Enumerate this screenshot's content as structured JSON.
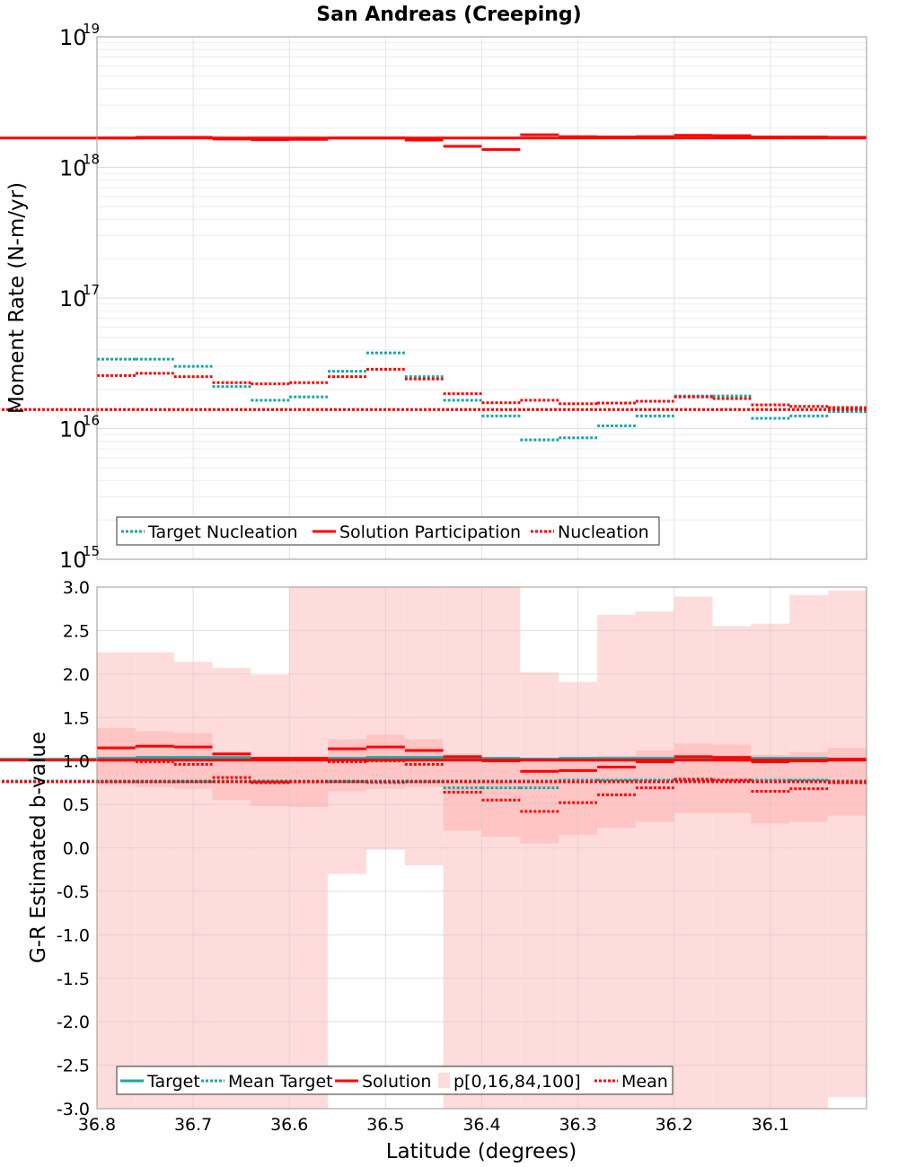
{
  "title": "San Andreas (Creeping)",
  "colors": {
    "target": "#1aa6a6",
    "solution": "#ff0000",
    "band_outer": "#ffdcdc",
    "band_inner": "#ffc4c4",
    "grid": "#e6e6e6",
    "frame": "#999999"
  },
  "chart_data": [
    {
      "type": "line",
      "id": "moment",
      "ylabel": "Moment Rate (N-m/yr)",
      "yscale": "log",
      "ylim": [
        1000000000000000.0,
        1e+19
      ],
      "y_ticks": [
        {
          "base": "10",
          "exp": "15"
        },
        {
          "base": "10",
          "exp": "16"
        },
        {
          "base": "10",
          "exp": "17"
        },
        {
          "base": "10",
          "exp": "18"
        },
        {
          "base": "10",
          "exp": "19"
        }
      ],
      "xlim": [
        36.8,
        36.0
      ],
      "x_edges": [
        36.8,
        36.76,
        36.72,
        36.68,
        36.64,
        36.6,
        36.56,
        36.52,
        36.48,
        36.44,
        36.4,
        36.36,
        36.32,
        36.28,
        36.24,
        36.2,
        36.16,
        36.12,
        36.08,
        36.04,
        36.0
      ],
      "series": [
        {
          "name": "Target Nucleation",
          "style": "dotted",
          "color": "#1aa6a6",
          "values": [
            3.4e+16,
            3.4e+16,
            3e+16,
            2.1e+16,
            1.65e+16,
            1.75e+16,
            2.75e+16,
            3.8e+16,
            2.5e+16,
            1.65e+16,
            1.25e+16,
            8200000000000000.0,
            8500000000000000.0,
            1.05e+16,
            1.25e+16,
            1.78e+16,
            1.78e+16,
            1.2e+16,
            1.25e+16,
            1.35e+16,
            1.4e+16
          ]
        },
        {
          "name": "Solution Participation",
          "style": "solid",
          "color": "#ff0000",
          "values": [
            1.68e+18,
            1.7e+18,
            1.7e+18,
            1.65e+18,
            1.63e+18,
            1.64e+18,
            1.68e+18,
            1.68e+18,
            1.62e+18,
            1.45e+18,
            1.37e+18,
            1.78e+18,
            1.72e+18,
            1.71e+18,
            1.72e+18,
            1.76e+18,
            1.75e+18,
            1.71e+18,
            1.71e+18,
            1.7e+18,
            1.68e+18
          ]
        },
        {
          "name": "Nucleation",
          "style": "dotted",
          "color": "#ff0000",
          "values": [
            2.55e+16,
            2.65e+16,
            2.5e+16,
            2.25e+16,
            2.2e+16,
            2.25e+16,
            2.5e+16,
            2.85e+16,
            2.4e+16,
            1.85e+16,
            1.58e+16,
            1.65e+16,
            1.55e+16,
            1.57e+16,
            1.62e+16,
            1.75e+16,
            1.7e+16,
            1.52e+16,
            1.48e+16,
            1.45e+16,
            1.4e+16
          ]
        }
      ],
      "legend": [
        "Target Nucleation",
        "Solution Participation",
        "Nucleation"
      ]
    },
    {
      "type": "line",
      "id": "bvalue",
      "xlabel": "Latitude (degrees)",
      "ylabel": "G-R Estimated b-value",
      "ylim": [
        -3.0,
        3.0
      ],
      "y_ticks": [
        "-3.0",
        "-2.5",
        "-2.0",
        "-1.5",
        "-1.0",
        "-0.5",
        "0.0",
        "0.5",
        "1.0",
        "1.5",
        "2.0",
        "2.5",
        "3.0"
      ],
      "xlim": [
        36.8,
        36.0
      ],
      "x_ticks": [
        "36.8",
        "36.7",
        "36.6",
        "36.5",
        "36.4",
        "36.3",
        "36.2",
        "36.1"
      ],
      "x_edges": [
        36.8,
        36.76,
        36.72,
        36.68,
        36.64,
        36.6,
        36.56,
        36.52,
        36.48,
        36.44,
        36.4,
        36.36,
        36.32,
        36.28,
        36.24,
        36.2,
        36.16,
        36.12,
        36.08,
        36.04,
        36.0
      ],
      "bands": {
        "name": "p[0,16,84,100]",
        "p0": [
          -3.0,
          -3.0,
          -3.0,
          -3.0,
          -3.0,
          -3.0,
          -0.3,
          -0.02,
          -0.2,
          -3.0,
          -3.0,
          -3.0,
          -3.0,
          -3.0,
          -3.0,
          -3.0,
          -3.0,
          -3.0,
          -3.0,
          -2.87,
          -2.87
        ],
        "p16": [
          0.72,
          0.7,
          0.68,
          0.55,
          0.48,
          0.47,
          0.65,
          0.68,
          0.7,
          0.2,
          0.13,
          0.05,
          0.15,
          0.23,
          0.3,
          0.4,
          0.4,
          0.28,
          0.3,
          0.37,
          0.35
        ],
        "p84": [
          1.38,
          1.34,
          1.32,
          1.1,
          1.04,
          1.04,
          1.25,
          1.3,
          1.25,
          1.08,
          1.04,
          1.0,
          1.02,
          1.06,
          1.12,
          1.2,
          1.19,
          1.07,
          1.1,
          1.15,
          1.16
        ],
        "p100": [
          2.25,
          2.25,
          2.14,
          2.07,
          1.99,
          3.0,
          3.0,
          3.0,
          3.0,
          3.0,
          3.0,
          2.02,
          1.91,
          2.68,
          2.72,
          2.89,
          2.55,
          2.58,
          2.91,
          2.96,
          3.0
        ]
      },
      "series": [
        {
          "name": "Target",
          "style": "solid",
          "color": "#1aa6a6",
          "values": [
            1.03,
            1.04,
            1.04,
            1.04,
            1.03,
            1.03,
            1.03,
            1.04,
            1.04,
            1.04,
            1.03,
            1.02,
            1.03,
            1.03,
            1.03,
            1.04,
            1.04,
            1.03,
            1.03,
            1.02,
            1.02
          ]
        },
        {
          "name": "Mean Target",
          "style": "dotted",
          "color": "#1aa6a6",
          "values": [
            0.76,
            0.76,
            0.76,
            0.76,
            0.76,
            0.76,
            0.76,
            0.75,
            0.76,
            0.69,
            0.69,
            0.69,
            0.78,
            0.78,
            0.78,
            0.78,
            0.78,
            0.78,
            0.78,
            0.77,
            0.77
          ]
        },
        {
          "name": "Solution",
          "style": "solid",
          "color": "#ff0000",
          "values": [
            1.15,
            1.17,
            1.16,
            1.08,
            1.03,
            1.03,
            1.14,
            1.16,
            1.12,
            1.05,
            1.0,
            0.88,
            0.89,
            0.93,
            0.99,
            1.05,
            1.04,
            0.99,
            1.0,
            1.02,
            1.01
          ]
        },
        {
          "name": "Mean",
          "style": "dotted",
          "color": "#ff0000",
          "values": [
            1.01,
            0.99,
            0.96,
            0.81,
            0.75,
            0.76,
            0.99,
            1.0,
            0.96,
            0.64,
            0.55,
            0.42,
            0.52,
            0.61,
            0.69,
            0.79,
            0.78,
            0.65,
            0.68,
            0.75,
            0.76
          ]
        }
      ],
      "legend": [
        "Target",
        "Mean Target",
        "Solution",
        "p[0,16,84,100]",
        "Mean"
      ]
    }
  ]
}
